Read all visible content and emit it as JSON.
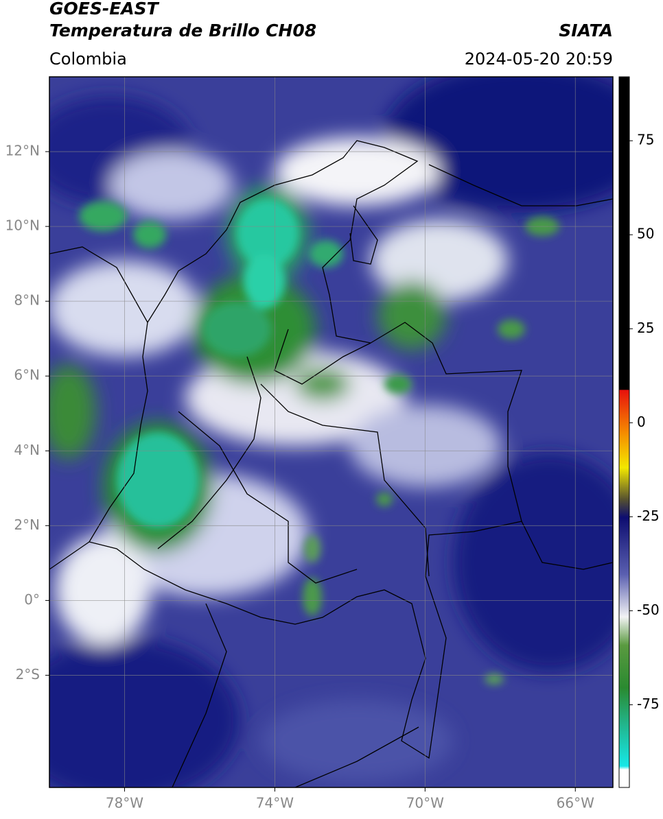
{
  "header": {
    "title": "GOES-EAST",
    "subtitle": "Temperatura de Brillo CH08",
    "source": "SIATA",
    "region": "Colombia",
    "datetime": "2024-05-20 20:59"
  },
  "map": {
    "xlim": [
      -80,
      -65
    ],
    "ylim": [
      -5,
      14
    ],
    "xticks": [
      {
        "value": -78,
        "label": "78°W"
      },
      {
        "value": -74,
        "label": "74°W"
      },
      {
        "value": -70,
        "label": "70°W"
      },
      {
        "value": -66,
        "label": "66°W"
      }
    ],
    "yticks": [
      {
        "value": 12,
        "label": "12°N"
      },
      {
        "value": 10,
        "label": "10°N"
      },
      {
        "value": 8,
        "label": "8°N"
      },
      {
        "value": 6,
        "label": "6°N"
      },
      {
        "value": 4,
        "label": "4°N"
      },
      {
        "value": 2,
        "label": "2°N"
      },
      {
        "value": 0,
        "label": "0°"
      },
      {
        "value": -2,
        "label": "2°S"
      }
    ],
    "grid": true
  },
  "colorbar": {
    "lim": [
      -97,
      92
    ],
    "ticks": [
      75,
      50,
      25,
      0,
      -25,
      -50,
      -75
    ]
  }
}
